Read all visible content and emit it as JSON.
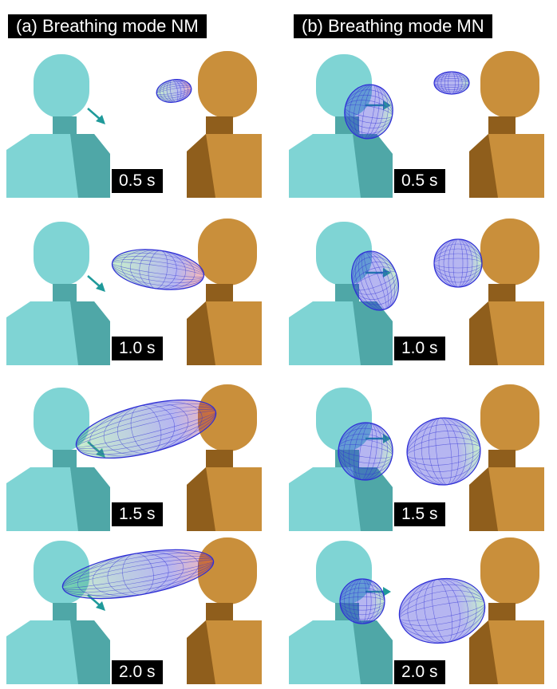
{
  "columns": [
    {
      "title": "(a) Breathing mode NM"
    },
    {
      "title": "(b) Breathing mode MN"
    }
  ],
  "times": [
    "0.5 s",
    "1.0 s",
    "1.5 s",
    "2.0 s"
  ],
  "colors": {
    "left_manikin": "#7fd4d4",
    "left_manikin_shadow": "#4fa7a7",
    "right_manikin": "#c98f3b",
    "right_manikin_shadow": "#8f5e1c",
    "arrow": "#1f9a9a",
    "mesh_blue": "#2f2fd6",
    "mesh_hot": "#e7332a",
    "mesh_green": "#5fd26a"
  }
}
